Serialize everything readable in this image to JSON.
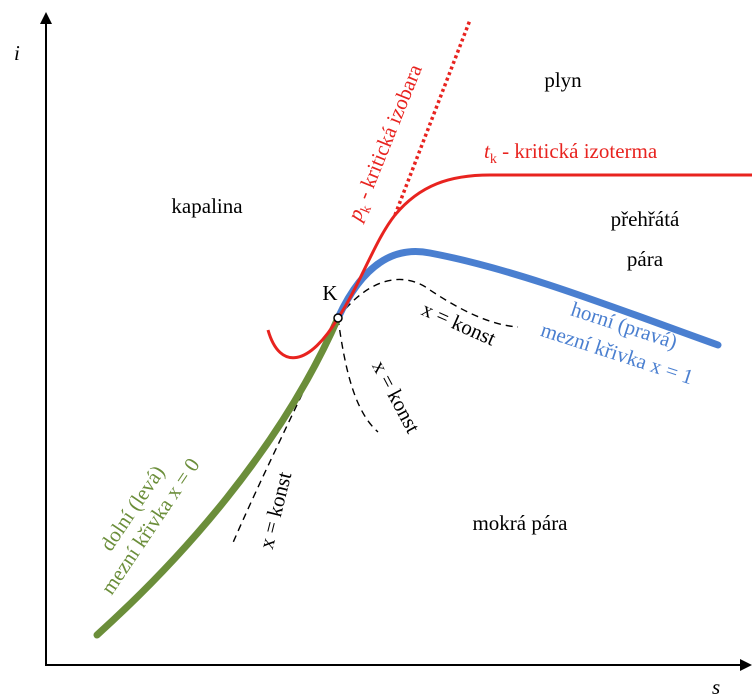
{
  "axes": {
    "y_label": "i",
    "x_label": "s"
  },
  "regions": {
    "gas": "plyn",
    "liquid": "kapalina",
    "superheated": [
      "přehřátá",
      "pára"
    ],
    "wet": "mokrá pára"
  },
  "critical_point": "K",
  "critical_isobar": {
    "symbol": "p",
    "subscript": "k",
    "text": " - kritická izobara"
  },
  "critical_isotherm": {
    "symbol": "t",
    "subscript": "k",
    "text": " - kritická izoterma"
  },
  "quality_lines": [
    "x = konst",
    "x = konst",
    "x = konst"
  ],
  "upper_curve": [
    "horní (pravá)",
    "mezní křivka x = 1"
  ],
  "lower_curve": [
    "dolní (levá)",
    "mezní křivka x = 0"
  ]
}
